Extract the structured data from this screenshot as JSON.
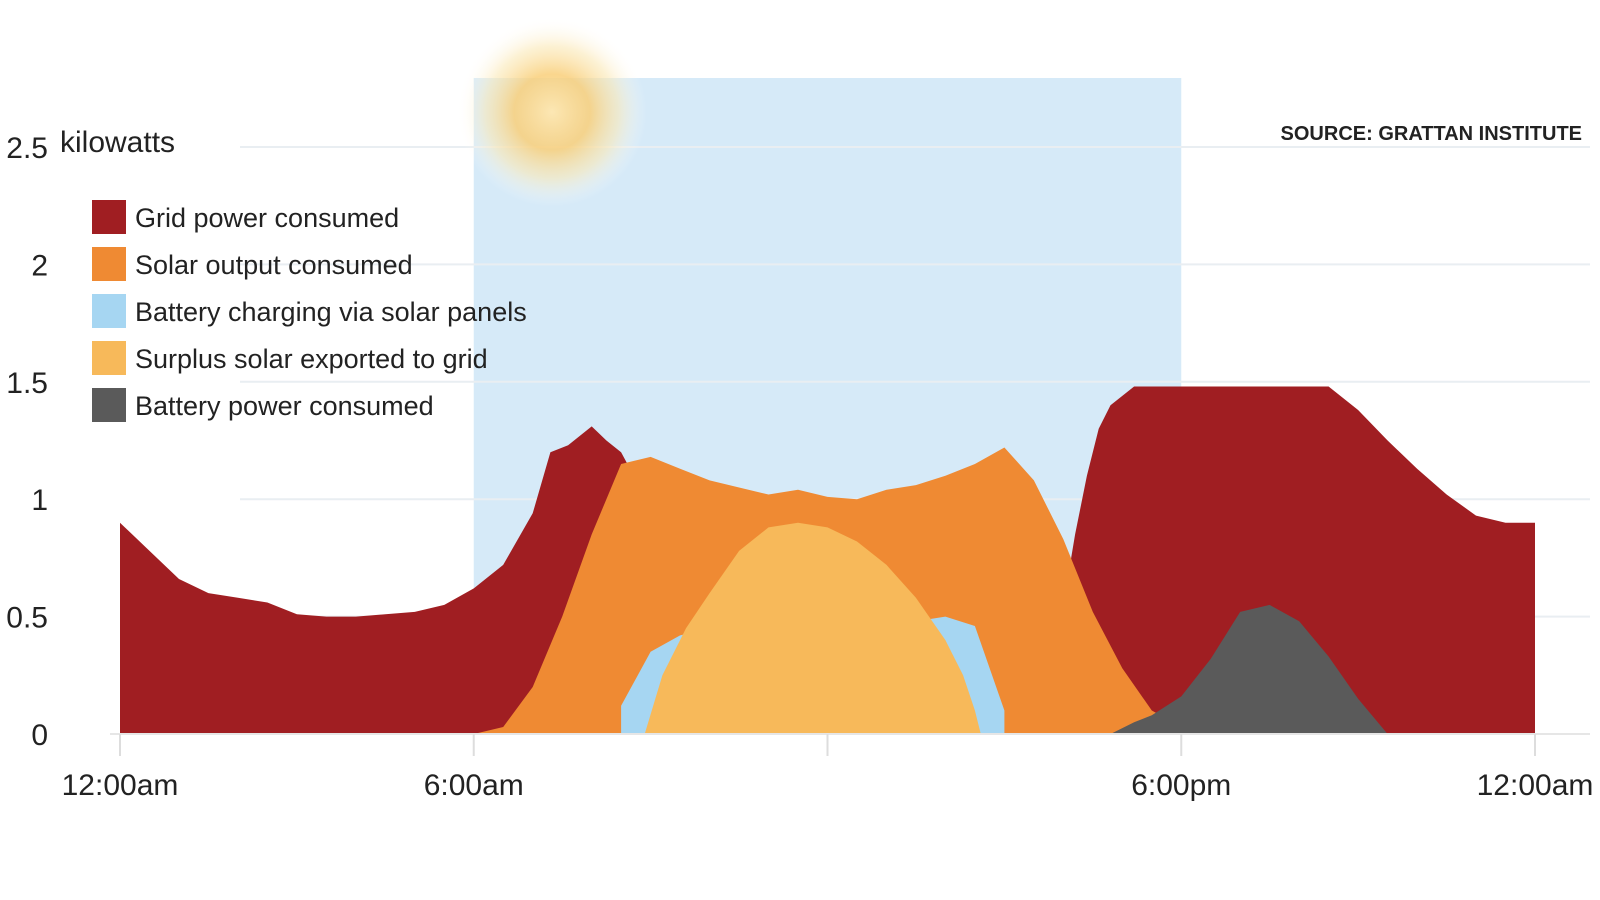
{
  "chart_data": {
    "type": "area",
    "unit_label": "kilowatts",
    "source": "SOURCE: GRATTAN INSTITUTE",
    "ylim": [
      0,
      2.5
    ],
    "y_ticks": [
      {
        "value": 0,
        "label": "0"
      },
      {
        "value": 0.5,
        "label": "0.5"
      },
      {
        "value": 1,
        "label": "1"
      },
      {
        "value": 1.5,
        "label": "1.5"
      },
      {
        "value": 2,
        "label": "2"
      },
      {
        "value": 2.5,
        "label": "2.5"
      }
    ],
    "x_ticks": [
      {
        "hour": 0,
        "label": "12:00am"
      },
      {
        "hour": 6,
        "label": "6:00am"
      },
      {
        "hour": 12,
        "label": ""
      },
      {
        "hour": 18,
        "label": "6:00pm"
      },
      {
        "hour": 24,
        "label": "12:00am"
      }
    ],
    "xlim": [
      0,
      24
    ],
    "daylight_band": {
      "start_hour": 6,
      "end_hour": 18,
      "color": "#d6eaf8"
    },
    "grid": true,
    "legend_position": "top-left",
    "legend": [
      {
        "label": "Grid power consumed",
        "color": "#a01e22"
      },
      {
        "label": "Solar output consumed",
        "color": "#ef8a33"
      },
      {
        "label": "Battery charging via solar panels",
        "color": "#a6d6f2"
      },
      {
        "label": "Surplus solar exported to grid",
        "color": "#f7b95a"
      },
      {
        "label": "Battery power consumed",
        "color": "#5a5a5a"
      }
    ],
    "series": [
      {
        "name": "Grid power consumed",
        "color": "#a01e22",
        "points": [
          [
            0,
            0.9
          ],
          [
            0.5,
            0.78
          ],
          [
            1,
            0.66
          ],
          [
            1.5,
            0.6
          ],
          [
            2,
            0.58
          ],
          [
            2.5,
            0.56
          ],
          [
            3,
            0.51
          ],
          [
            3.5,
            0.5
          ],
          [
            4,
            0.5
          ],
          [
            4.5,
            0.51
          ],
          [
            5,
            0.52
          ],
          [
            5.5,
            0.55
          ],
          [
            6,
            0.62
          ],
          [
            6.5,
            0.72
          ],
          [
            7,
            0.94
          ],
          [
            7.3,
            1.2
          ],
          [
            7.6,
            1.23
          ],
          [
            8,
            1.31
          ],
          [
            8.25,
            1.25
          ],
          [
            8.5,
            1.2
          ],
          [
            8.8,
            1.06
          ],
          [
            9,
            0.9
          ],
          [
            9.2,
            0.7
          ],
          [
            9.4,
            0.5
          ],
          [
            9.6,
            0.3
          ],
          [
            9.8,
            0.15
          ],
          [
            10,
            0.05
          ],
          [
            10.2,
            0
          ],
          [
            15.4,
            0
          ],
          [
            15.6,
            0.1
          ],
          [
            15.8,
            0.3
          ],
          [
            16,
            0.55
          ],
          [
            16.2,
            0.85
          ],
          [
            16.4,
            1.1
          ],
          [
            16.6,
            1.3
          ],
          [
            16.8,
            1.4
          ],
          [
            17.2,
            1.48
          ],
          [
            20.5,
            1.48
          ],
          [
            21,
            1.38
          ],
          [
            21.5,
            1.25
          ],
          [
            22,
            1.13
          ],
          [
            22.5,
            1.02
          ],
          [
            23,
            0.93
          ],
          [
            23.5,
            0.9
          ],
          [
            24,
            0.9
          ]
        ]
      },
      {
        "name": "Solar output consumed",
        "color": "#ef8a33",
        "points": [
          [
            6,
            0
          ],
          [
            6.5,
            0.03
          ],
          [
            7,
            0.2
          ],
          [
            7.5,
            0.5
          ],
          [
            8,
            0.85
          ],
          [
            8.5,
            1.15
          ],
          [
            9,
            1.18
          ],
          [
            9.5,
            1.13
          ],
          [
            10,
            1.08
          ],
          [
            10.5,
            1.05
          ],
          [
            11,
            1.02
          ],
          [
            11.5,
            1.04
          ],
          [
            12,
            1.01
          ],
          [
            12.5,
            1.0
          ],
          [
            13,
            1.04
          ],
          [
            13.5,
            1.06
          ],
          [
            14,
            1.1
          ],
          [
            14.5,
            1.15
          ],
          [
            15,
            1.22
          ],
          [
            15.5,
            1.08
          ],
          [
            16,
            0.83
          ],
          [
            16.5,
            0.52
          ],
          [
            17,
            0.28
          ],
          [
            17.5,
            0.1
          ],
          [
            18,
            0.03
          ],
          [
            18.5,
            0
          ]
        ]
      },
      {
        "name": "Battery charging via solar panels",
        "color": "#a6d6f2",
        "points": [
          [
            8.5,
            0.12
          ],
          [
            9,
            0.35
          ],
          [
            9.5,
            0.42
          ],
          [
            10,
            0.45
          ],
          [
            10.5,
            0.48
          ],
          [
            11,
            0.5
          ],
          [
            11.5,
            0.48
          ],
          [
            12,
            0.5
          ],
          [
            12.5,
            0.49
          ],
          [
            13,
            0.47
          ],
          [
            13.5,
            0.48
          ],
          [
            14,
            0.5
          ],
          [
            14.5,
            0.46
          ],
          [
            15,
            0.1
          ]
        ]
      },
      {
        "name": "Surplus solar exported to grid",
        "color": "#f7b95a",
        "points": [
          [
            8.9,
            0
          ],
          [
            9.2,
            0.25
          ],
          [
            9.6,
            0.45
          ],
          [
            10,
            0.6
          ],
          [
            10.5,
            0.78
          ],
          [
            11,
            0.88
          ],
          [
            11.5,
            0.9
          ],
          [
            12,
            0.88
          ],
          [
            12.5,
            0.82
          ],
          [
            13,
            0.72
          ],
          [
            13.5,
            0.58
          ],
          [
            14,
            0.4
          ],
          [
            14.3,
            0.25
          ],
          [
            14.5,
            0.1
          ],
          [
            14.6,
            0
          ]
        ]
      },
      {
        "name": "Battery power consumed",
        "color": "#5a5a5a",
        "points": [
          [
            16.8,
            0
          ],
          [
            17.2,
            0.05
          ],
          [
            17.5,
            0.08
          ],
          [
            18,
            0.16
          ],
          [
            18.5,
            0.32
          ],
          [
            19,
            0.52
          ],
          [
            19.5,
            0.55
          ],
          [
            20,
            0.48
          ],
          [
            20.5,
            0.33
          ],
          [
            21,
            0.15
          ],
          [
            21.5,
            0.0
          ]
        ]
      }
    ]
  }
}
